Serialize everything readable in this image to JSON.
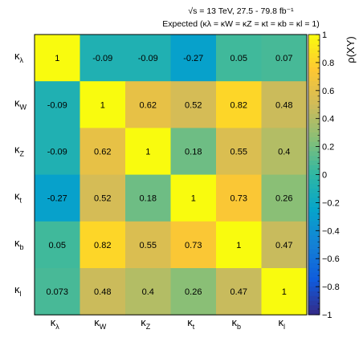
{
  "chart_data": {
    "type": "heatmap",
    "header": {
      "energy": "√s = 13 TeV, 27.5 - 79.8 fb⁻¹",
      "scenario": "Expected (κλ = κW = κZ = κt = κb = κl = 1)"
    },
    "z_label": "ρ(XY)",
    "z_range": [
      -1,
      1
    ],
    "colorbar_ticks": [
      "1",
      "0.8",
      "0.6",
      "0.4",
      "0.2",
      "0",
      "−0.2",
      "−0.4",
      "−0.6",
      "−0.8",
      "−1"
    ],
    "colorbar_tick_values": [
      1,
      0.8,
      0.6,
      0.4,
      0.2,
      0,
      -0.2,
      -0.4,
      -0.6,
      -0.8,
      -1
    ],
    "labels": [
      {
        "main": "κ",
        "sub": "λ"
      },
      {
        "main": "κ",
        "sub": "W"
      },
      {
        "main": "κ",
        "sub": "Z"
      },
      {
        "main": "κ",
        "sub": "t"
      },
      {
        "main": "κ",
        "sub": "b"
      },
      {
        "main": "κ",
        "sub": "l"
      }
    ],
    "values": [
      [
        1,
        -0.09,
        -0.09,
        -0.27,
        0.05,
        0.07
      ],
      [
        -0.09,
        1,
        0.62,
        0.52,
        0.82,
        0.48
      ],
      [
        -0.09,
        0.62,
        1,
        0.18,
        0.55,
        0.4
      ],
      [
        -0.27,
        0.52,
        0.18,
        1,
        0.73,
        0.26
      ],
      [
        0.05,
        0.82,
        0.55,
        0.73,
        1,
        0.47
      ],
      [
        0.073,
        0.48,
        0.4,
        0.26,
        0.47,
        1
      ]
    ],
    "value_labels": [
      [
        "1",
        "-0.09",
        "-0.09",
        "-0.27",
        "0.05",
        "0.07"
      ],
      [
        "-0.09",
        "1",
        "0.62",
        "0.52",
        "0.82",
        "0.48"
      ],
      [
        "-0.09",
        "0.62",
        "1",
        "0.18",
        "0.55",
        "0.4"
      ],
      [
        "-0.27",
        "0.52",
        "0.18",
        "1",
        "0.73",
        "0.26"
      ],
      [
        "0.05",
        "0.82",
        "0.55",
        "0.73",
        "1",
        "0.47"
      ],
      [
        "0.073",
        "0.48",
        "0.4",
        "0.26",
        "0.47",
        "1"
      ]
    ],
    "colormap": [
      "#352a87",
      "#0f5cdd",
      "#1481d6",
      "#06a4ca",
      "#2eb7a4",
      "#87bf77",
      "#d1bb59",
      "#fec832",
      "#f9fb0e"
    ]
  }
}
